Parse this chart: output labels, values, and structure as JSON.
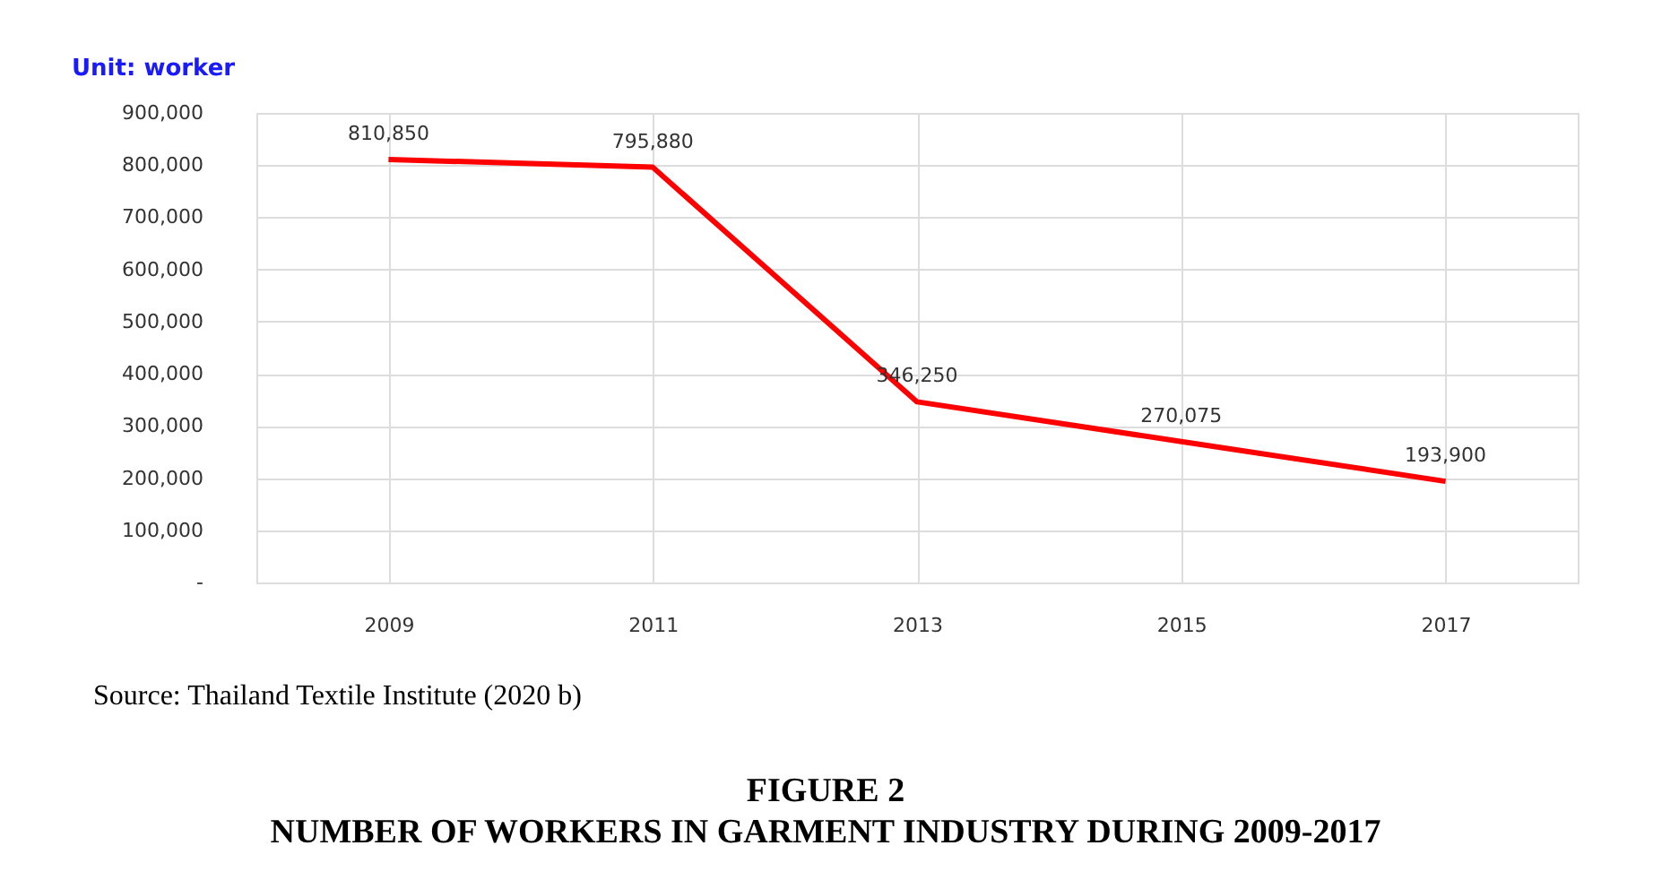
{
  "chart_data": {
    "type": "line",
    "title": "FIGURE 2",
    "subtitle": "NUMBER OF WORKERS IN GARMENT INDUSTRY DURING 2009-2017",
    "categories": [
      "2009",
      "2011",
      "2013",
      "2015",
      "2017"
    ],
    "series": [
      {
        "color": "#ff0000",
        "values": [
          810850,
          795880,
          346250,
          270075,
          193900
        ],
        "value_labels": [
          "810,850",
          "795,880",
          "346,250",
          "270,075",
          "193,900"
        ]
      }
    ],
    "ylim": [
      0,
      900000
    ],
    "yticks": [
      {
        "value": 0,
        "label": "-"
      },
      {
        "value": 100000,
        "label": "100,000"
      },
      {
        "value": 200000,
        "label": "200,000"
      },
      {
        "value": 300000,
        "label": "300,000"
      },
      {
        "value": 400000,
        "label": "400,000"
      },
      {
        "value": 500000,
        "label": "500,000"
      },
      {
        "value": 600000,
        "label": "600,000"
      },
      {
        "value": 700000,
        "label": "700,000"
      },
      {
        "value": 800000,
        "label": "800,000"
      },
      {
        "value": 900000,
        "label": "900,000"
      }
    ],
    "grid": true,
    "marker": "none",
    "line_style": "solid",
    "annotations": [
      "Unit: worker",
      "Source: Thailand Textile Institute (2020 b)"
    ]
  }
}
